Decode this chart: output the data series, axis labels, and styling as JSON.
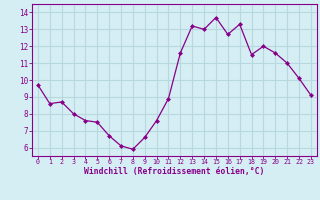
{
  "x": [
    0,
    1,
    2,
    3,
    4,
    5,
    6,
    7,
    8,
    9,
    10,
    11,
    12,
    13,
    14,
    15,
    16,
    17,
    18,
    19,
    20,
    21,
    22,
    23
  ],
  "y": [
    9.7,
    8.6,
    8.7,
    8.0,
    7.6,
    7.5,
    6.7,
    6.1,
    5.9,
    6.6,
    7.6,
    8.9,
    11.6,
    13.2,
    13.0,
    13.7,
    12.7,
    13.3,
    11.5,
    12.0,
    11.6,
    11.0,
    10.1,
    9.1
  ],
  "line_color": "#880088",
  "marker": "D",
  "marker_size": 2,
  "bg_color": "#d4eef4",
  "grid_color": "#b8d8e0",
  "xlabel": "Windchill (Refroidissement éolien,°C)",
  "xlabel_color": "#880088",
  "tick_color": "#880088",
  "spine_color": "#880088",
  "ylim": [
    5.5,
    14.5
  ],
  "xlim": [
    -0.5,
    23.5
  ],
  "yticks": [
    6,
    7,
    8,
    9,
    10,
    11,
    12,
    13,
    14
  ],
  "xticks": [
    0,
    1,
    2,
    3,
    4,
    5,
    6,
    7,
    8,
    9,
    10,
    11,
    12,
    13,
    14,
    15,
    16,
    17,
    18,
    19,
    20,
    21,
    22,
    23
  ]
}
